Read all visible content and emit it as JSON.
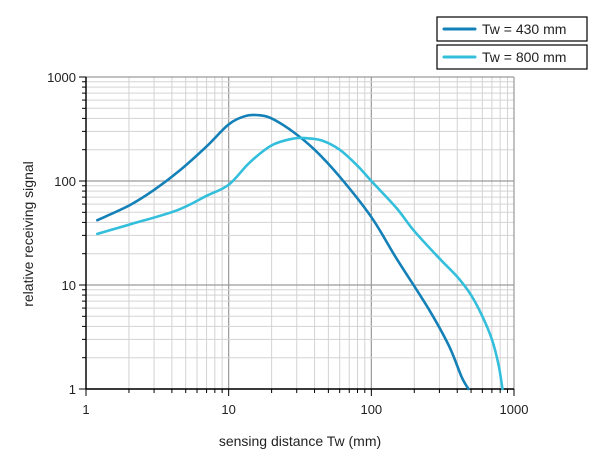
{
  "chart_data": {
    "type": "line",
    "xscale": "log",
    "yscale": "log",
    "xlim": [
      1,
      1000
    ],
    "ylim": [
      1,
      1000
    ],
    "xticks": [
      "1",
      "10",
      "100",
      "1000"
    ],
    "yticks": [
      "1",
      "10",
      "100",
      "1000"
    ],
    "xlabel": "sensing distance Tw (mm)",
    "ylabel": "relative receiving signal",
    "grid": true,
    "legend_position": "top-right",
    "series": [
      {
        "name": "Tw = 430 mm",
        "color": "#1380b7",
        "x": [
          1.2,
          2,
          3,
          4.5,
          7,
          10,
          13,
          16,
          20,
          28,
          40,
          60,
          100,
          150,
          250,
          350,
          430,
          480
        ],
        "y": [
          42,
          58,
          82,
          125,
          215,
          350,
          420,
          430,
          400,
          300,
          200,
          110,
          45,
          18,
          6,
          2.6,
          1.3,
          1
        ]
      },
      {
        "name": "Tw = 800 mm",
        "color": "#33bfdc",
        "x": [
          1.2,
          2,
          4.3,
          7,
          10,
          14,
          20,
          28,
          35,
          45,
          60,
          80,
          100,
          150,
          200,
          300,
          400,
          500,
          600,
          700,
          780,
          830
        ],
        "y": [
          31,
          38,
          52,
          72,
          92,
          150,
          220,
          255,
          258,
          245,
          200,
          140,
          100,
          55,
          33,
          18,
          12,
          8,
          5,
          3,
          1.7,
          1
        ]
      }
    ]
  }
}
